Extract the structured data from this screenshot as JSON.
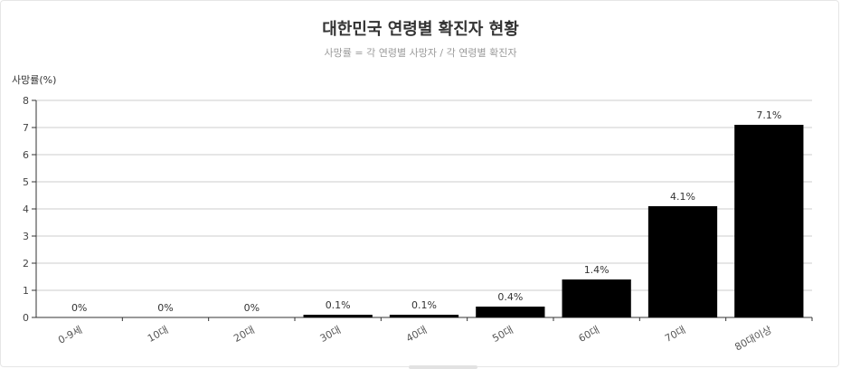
{
  "chart_data": {
    "type": "bar",
    "title": "대한민국 연령별 확진자 현황",
    "subtitle": "사망률 = 각 연령별 사망자 / 각 연령별 확진자",
    "xlabel": "",
    "ylabel": "사망률(%)",
    "ylim": [
      0,
      8
    ],
    "yticks": [
      0,
      1,
      2,
      3,
      4,
      5,
      6,
      7,
      8
    ],
    "grid": true,
    "categories": [
      "0-9세",
      "10대",
      "20대",
      "30대",
      "40대",
      "50대",
      "60대",
      "70대",
      "80대이상"
    ],
    "values": [
      0,
      0,
      0,
      0.1,
      0.1,
      0.4,
      1.4,
      4.1,
      7.1
    ],
    "value_labels": [
      "0%",
      "0%",
      "0%",
      "0.1%",
      "0.1%",
      "0.4%",
      "1.4%",
      "4.1%",
      "7.1%"
    ],
    "bar_color": "#000000",
    "grid_color": "#cccccc"
  }
}
